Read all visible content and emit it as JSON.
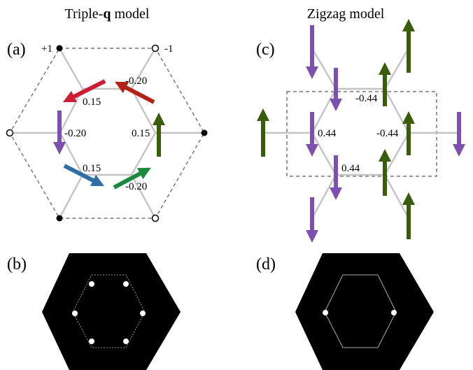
{
  "titles": {
    "left_prefix": "Triple-",
    "left_bold": "q",
    "left_suffix": " model",
    "right": "Zigzag model"
  },
  "panel_labels": {
    "a": "(a)",
    "b": "(b)",
    "c": "(c)",
    "d": "(d)"
  },
  "panel_a": {
    "vertex_labels": {
      "top_left": "+1",
      "top_right": "-1"
    },
    "bond_values": {
      "upper_left": "0.15",
      "upper_right": "-0.20",
      "left": "-0.20",
      "right": "0.15",
      "lower_left": "0.15",
      "lower_right": "-0.20"
    }
  },
  "panel_c": {
    "values": {
      "top": "-0.44",
      "left": "0.44",
      "right": "-0.44",
      "bottom": "0.44"
    }
  },
  "colors": {
    "red": "#d01c30",
    "dark_red": "#b32117",
    "purple": "#7d4fb0",
    "olive_green": "#3a5d0c",
    "blue": "#2f6fa7",
    "green": "#1c8a3e",
    "bond_gray": "#c4c4c4",
    "dash_gray": "#777777"
  }
}
